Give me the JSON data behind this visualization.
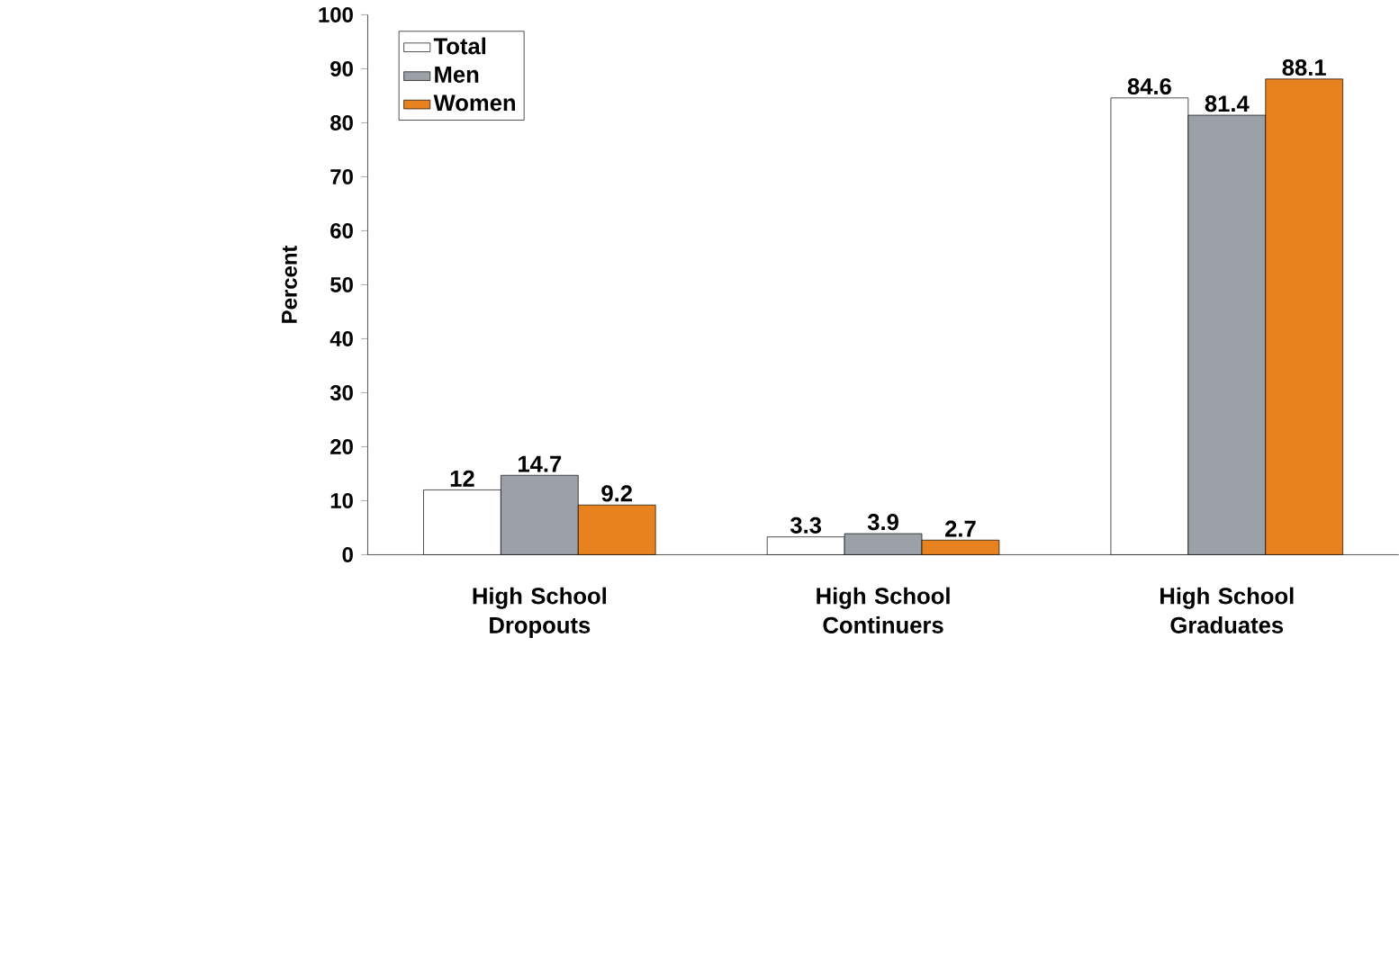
{
  "chart_data": {
    "type": "bar",
    "ylabel": "Percent",
    "categories": [
      "High School Dropouts",
      "High School Continuers",
      "High School Graduates"
    ],
    "series": [
      {
        "name": "Total",
        "color": "#ffffff",
        "values": [
          12,
          3.3,
          84.6
        ]
      },
      {
        "name": "Men",
        "color": "#9ca1a8",
        "values": [
          14.7,
          3.9,
          81.4
        ]
      },
      {
        "name": "Women",
        "color": "#e8821e",
        "values": [
          9.2,
          2.7,
          88.1
        ]
      }
    ],
    "ylim": [
      0,
      100
    ],
    "yticks": [
      0,
      10,
      20,
      30,
      40,
      50,
      60,
      70,
      80,
      90,
      100
    ],
    "data_labels": true,
    "legend": "top left",
    "grid": false
  }
}
